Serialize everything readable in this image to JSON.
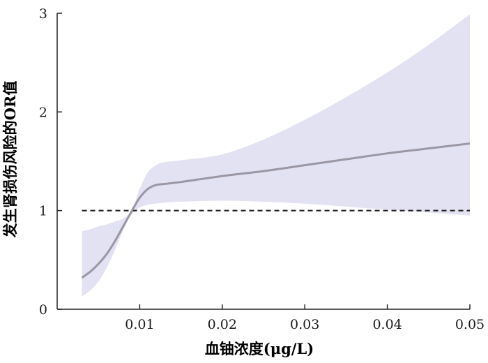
{
  "chart_data": {
    "type": "line",
    "title": "",
    "xlabel": "血铀浓度(μg/L)",
    "ylabel": "发生肾损伤风险的OR值",
    "xlim": [
      0.0,
      0.05
    ],
    "ylim": [
      0,
      3
    ],
    "x_ticks": [
      0.01,
      0.02,
      0.03,
      0.04,
      0.05
    ],
    "x_tick_labels": [
      "0.01",
      "0.02",
      "0.03",
      "0.04",
      "0.05"
    ],
    "y_ticks": [
      0,
      1,
      2,
      3
    ],
    "y_tick_labels": [
      "0",
      "1",
      "2",
      "3"
    ],
    "grid": false,
    "reference_line": {
      "y": 1,
      "style": "dashed",
      "color": "#222222"
    },
    "series": [
      {
        "x": [
          0.003,
          0.004,
          0.005,
          0.006,
          0.007,
          0.008,
          0.009,
          0.01,
          0.011,
          0.012,
          0.013,
          0.015,
          0.02,
          0.025,
          0.03,
          0.035,
          0.04,
          0.045,
          0.05
        ],
        "y": [
          0.32,
          0.38,
          0.46,
          0.56,
          0.69,
          0.84,
          0.99,
          1.13,
          1.22,
          1.26,
          1.27,
          1.29,
          1.35,
          1.4,
          1.46,
          1.52,
          1.58,
          1.63,
          1.68
        ],
        "lower": [
          0.13,
          0.19,
          0.28,
          0.42,
          0.6,
          0.8,
          0.96,
          1.03,
          1.06,
          1.07,
          1.08,
          1.09,
          1.1,
          1.09,
          1.07,
          1.04,
          1.01,
          0.98,
          0.95
        ],
        "upper": [
          0.79,
          0.81,
          0.84,
          0.86,
          0.89,
          0.92,
          1.0,
          1.22,
          1.39,
          1.46,
          1.49,
          1.51,
          1.57,
          1.72,
          1.92,
          2.15,
          2.4,
          2.68,
          2.99
        ],
        "line_color": "#9a96a4",
        "band_color": "#e2e2f2"
      }
    ]
  }
}
